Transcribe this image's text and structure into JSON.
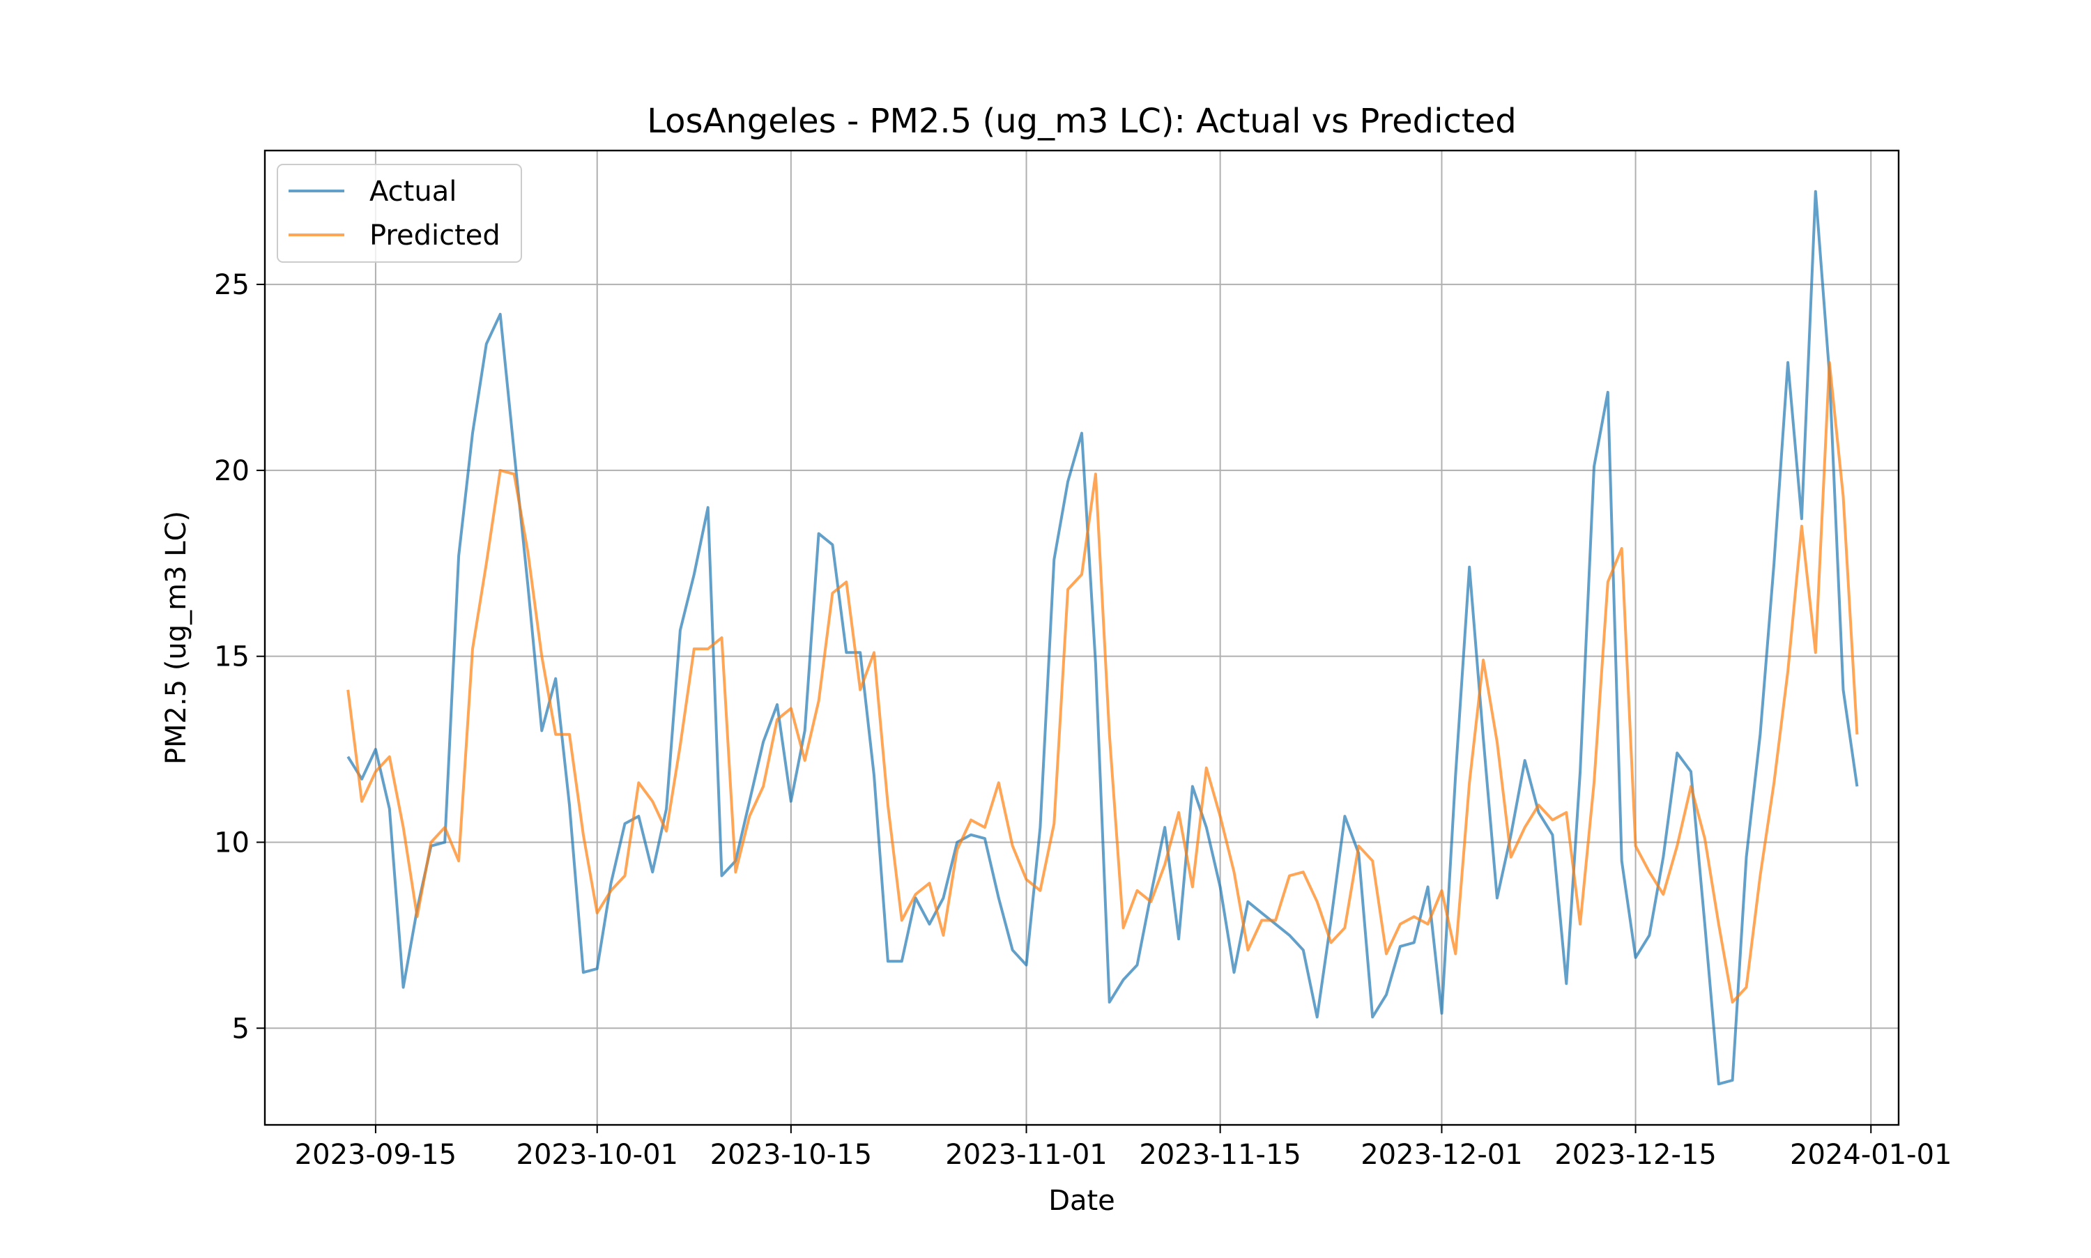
{
  "chart_data": {
    "type": "line",
    "title": "LosAngeles - PM2.5 (ug_m3 LC): Actual vs Predicted",
    "xlabel": "Date",
    "ylabel": "PM2.5 (ug_m3 LC)",
    "xlim": [
      "2023-09-07",
      "2024-01-03"
    ],
    "ylim": [
      2.4,
      28.6
    ],
    "grid": true,
    "legend_position": "top-left",
    "x_ticks": [
      "2023-09-15",
      "2023-10-01",
      "2023-10-15",
      "2023-11-01",
      "2023-11-15",
      "2023-12-01",
      "2023-12-15",
      "2024-01-01"
    ],
    "y_ticks": [
      5,
      10,
      15,
      20,
      25
    ],
    "colors": {
      "Actual": "#1f77b4",
      "Predicted": "#ff7f0e"
    },
    "series": [
      {
        "name": "Actual",
        "x": [
          "2023-09-13",
          "2023-09-14",
          "2023-09-15",
          "2023-09-16",
          "2023-09-17",
          "2023-09-18",
          "2023-09-19",
          "2023-09-20",
          "2023-09-21",
          "2023-09-22",
          "2023-09-23",
          "2023-09-24",
          "2023-09-25",
          "2023-09-26",
          "2023-09-27",
          "2023-09-28",
          "2023-09-29",
          "2023-09-30",
          "2023-10-01",
          "2023-10-02",
          "2023-10-03",
          "2023-10-04",
          "2023-10-05",
          "2023-10-06",
          "2023-10-07",
          "2023-10-08",
          "2023-10-09",
          "2023-10-10",
          "2023-10-11",
          "2023-10-12",
          "2023-10-13",
          "2023-10-14",
          "2023-10-15",
          "2023-10-16",
          "2023-10-17",
          "2023-10-18",
          "2023-10-19",
          "2023-10-20",
          "2023-10-21",
          "2023-10-22",
          "2023-10-23",
          "2023-10-24",
          "2023-10-25",
          "2023-10-26",
          "2023-10-27",
          "2023-10-28",
          "2023-10-29",
          "2023-10-30",
          "2023-10-31",
          "2023-11-01",
          "2023-11-02",
          "2023-11-03",
          "2023-11-04",
          "2023-11-05",
          "2023-11-06",
          "2023-11-07",
          "2023-11-08",
          "2023-11-09",
          "2023-11-10",
          "2023-11-11",
          "2023-11-12",
          "2023-11-13",
          "2023-11-14",
          "2023-11-15",
          "2023-11-16",
          "2023-11-17",
          "2023-11-18",
          "2023-11-19",
          "2023-11-20",
          "2023-11-21",
          "2023-11-22",
          "2023-11-23",
          "2023-11-24",
          "2023-11-25",
          "2023-11-26",
          "2023-11-27",
          "2023-11-28",
          "2023-11-29",
          "2023-11-30",
          "2023-12-01",
          "2023-12-02",
          "2023-12-03",
          "2023-12-04",
          "2023-12-05",
          "2023-12-06",
          "2023-12-07",
          "2023-12-08",
          "2023-12-09",
          "2023-12-10",
          "2023-12-11",
          "2023-12-12",
          "2023-12-13",
          "2023-12-14",
          "2023-12-15",
          "2023-12-16",
          "2023-12-17",
          "2023-12-18",
          "2023-12-19",
          "2023-12-20",
          "2023-12-21",
          "2023-12-22",
          "2023-12-23",
          "2023-12-24",
          "2023-12-25",
          "2023-12-26",
          "2023-12-27",
          "2023-12-28",
          "2023-12-29",
          "2023-12-30",
          "2023-12-31"
        ],
        "values": [
          12.3,
          11.7,
          12.5,
          10.9,
          6.1,
          8.2,
          9.9,
          10.0,
          17.7,
          21.0,
          23.4,
          24.2,
          20.5,
          16.9,
          13.0,
          14.4,
          11.0,
          6.5,
          6.6,
          8.9,
          10.5,
          10.7,
          9.2,
          10.9,
          15.7,
          17.2,
          19.0,
          9.1,
          9.5,
          11.1,
          12.7,
          13.7,
          11.1,
          13.0,
          18.3,
          18.0,
          15.1,
          15.1,
          11.8,
          6.8,
          6.8,
          8.5,
          7.8,
          8.5,
          10.0,
          10.2,
          10.1,
          8.5,
          7.1,
          6.7,
          10.4,
          17.6,
          19.7,
          21.0,
          14.8,
          5.7,
          6.3,
          6.7,
          8.6,
          10.4,
          7.4,
          11.5,
          10.4,
          8.8,
          6.5,
          8.4,
          8.1,
          7.8,
          7.5,
          7.1,
          5.3,
          7.9,
          10.7,
          9.7,
          5.3,
          5.9,
          7.2,
          7.3,
          8.8,
          5.4,
          11.8,
          17.4,
          12.8,
          8.5,
          10.2,
          12.2,
          10.8,
          10.2,
          6.2,
          11.9,
          20.1,
          22.1,
          9.5,
          6.9,
          7.5,
          9.6,
          12.4,
          11.9,
          7.8,
          3.5,
          3.6,
          9.6,
          12.9,
          17.5,
          22.9,
          18.7,
          27.5,
          22.6,
          14.1,
          11.5
        ]
      },
      {
        "name": "Predicted",
        "x": [
          "2023-09-13",
          "2023-09-14",
          "2023-09-15",
          "2023-09-16",
          "2023-09-17",
          "2023-09-18",
          "2023-09-19",
          "2023-09-20",
          "2023-09-21",
          "2023-09-22",
          "2023-09-23",
          "2023-09-24",
          "2023-09-25",
          "2023-09-26",
          "2023-09-27",
          "2023-09-28",
          "2023-09-29",
          "2023-09-30",
          "2023-10-01",
          "2023-10-02",
          "2023-10-03",
          "2023-10-04",
          "2023-10-05",
          "2023-10-06",
          "2023-10-07",
          "2023-10-08",
          "2023-10-09",
          "2023-10-10",
          "2023-10-11",
          "2023-10-12",
          "2023-10-13",
          "2023-10-14",
          "2023-10-15",
          "2023-10-16",
          "2023-10-17",
          "2023-10-18",
          "2023-10-19",
          "2023-10-20",
          "2023-10-21",
          "2023-10-22",
          "2023-10-23",
          "2023-10-24",
          "2023-10-25",
          "2023-10-26",
          "2023-10-27",
          "2023-10-28",
          "2023-10-29",
          "2023-10-30",
          "2023-10-31",
          "2023-11-01",
          "2023-11-02",
          "2023-11-03",
          "2023-11-04",
          "2023-11-05",
          "2023-11-06",
          "2023-11-07",
          "2023-11-08",
          "2023-11-09",
          "2023-11-10",
          "2023-11-11",
          "2023-11-12",
          "2023-11-13",
          "2023-11-14",
          "2023-11-15",
          "2023-11-16",
          "2023-11-17",
          "2023-11-18",
          "2023-11-19",
          "2023-11-20",
          "2023-11-21",
          "2023-11-22",
          "2023-11-23",
          "2023-11-24",
          "2023-11-25",
          "2023-11-26",
          "2023-11-27",
          "2023-11-28",
          "2023-11-29",
          "2023-11-30",
          "2023-12-01",
          "2023-12-02",
          "2023-12-03",
          "2023-12-04",
          "2023-12-05",
          "2023-12-06",
          "2023-12-07",
          "2023-12-08",
          "2023-12-09",
          "2023-12-10",
          "2023-12-11",
          "2023-12-12",
          "2023-12-13",
          "2023-12-14",
          "2023-12-15",
          "2023-12-16",
          "2023-12-17",
          "2023-12-18",
          "2023-12-19",
          "2023-12-20",
          "2023-12-21",
          "2023-12-22",
          "2023-12-23",
          "2023-12-24",
          "2023-12-25",
          "2023-12-26",
          "2023-12-27",
          "2023-12-28",
          "2023-12-29",
          "2023-12-30",
          "2023-12-31"
        ],
        "values": [
          14.1,
          11.1,
          11.9,
          12.3,
          10.4,
          8.0,
          10.0,
          10.4,
          9.5,
          15.2,
          17.5,
          20.0,
          19.9,
          17.8,
          15.0,
          12.9,
          12.9,
          10.2,
          8.1,
          8.7,
          9.1,
          11.6,
          11.1,
          10.3,
          12.6,
          15.2,
          15.2,
          15.5,
          9.2,
          10.7,
          11.5,
          13.3,
          13.6,
          12.2,
          13.8,
          16.7,
          17.0,
          14.1,
          15.1,
          11.0,
          7.9,
          8.6,
          8.9,
          7.5,
          9.8,
          10.6,
          10.4,
          11.6,
          9.9,
          9.0,
          8.7,
          10.5,
          16.8,
          17.2,
          19.9,
          12.9,
          7.7,
          8.7,
          8.4,
          9.4,
          10.8,
          8.8,
          12.0,
          10.7,
          9.2,
          7.1,
          7.9,
          7.9,
          9.1,
          9.2,
          8.4,
          7.3,
          7.7,
          9.9,
          9.5,
          7.0,
          7.8,
          8.0,
          7.8,
          8.7,
          7.0,
          11.6,
          14.9,
          12.7,
          9.6,
          10.4,
          11.0,
          10.6,
          10.8,
          7.8,
          11.6,
          17.0,
          17.9,
          9.9,
          9.2,
          8.6,
          9.9,
          11.5,
          10.1,
          7.8,
          5.7,
          6.1,
          9.1,
          11.6,
          14.6,
          18.5,
          15.1,
          22.9,
          19.3,
          12.9
        ]
      }
    ]
  }
}
